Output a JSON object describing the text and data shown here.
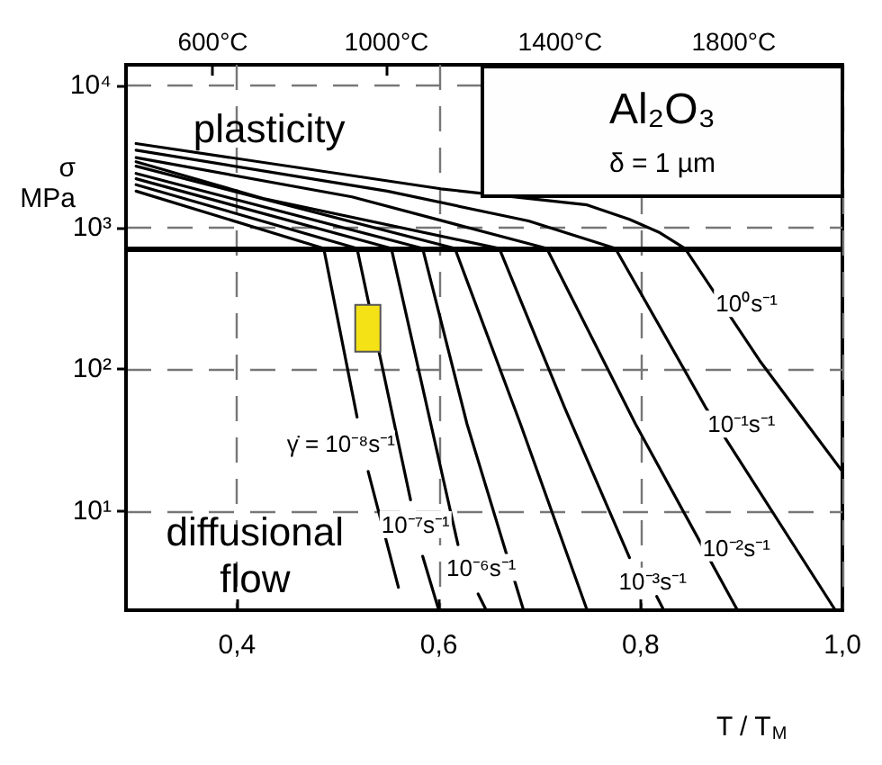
{
  "chart_data": {
    "type": "line",
    "xlabel": "T / T$_{M}$",
    "ylabel": "σ\nMPa",
    "xlim": [
      0.29,
      1.0
    ],
    "xticks": [
      {
        "value": 0.4,
        "label": "0,4"
      },
      {
        "value": 0.6,
        "label": "0,6"
      },
      {
        "value": 0.8,
        "label": "0,8"
      },
      {
        "value": 1.0,
        "label": "1,0"
      }
    ],
    "x2lim": [
      400,
      2050
    ],
    "x2ticks": [
      {
        "value": 600,
        "label": "600°C"
      },
      {
        "value": 1000,
        "label": "1000°C"
      },
      {
        "value": 1400,
        "label": "1400°C"
      },
      {
        "value": 1800,
        "label": "1800°C"
      }
    ],
    "ylim": [
      2,
      14000
    ],
    "log": "y",
    "yticks": [
      {
        "value": 10,
        "label": "10¹"
      },
      {
        "value": 100,
        "label": "10²"
      },
      {
        "value": 1000,
        "label": "10³"
      },
      {
        "value": 10000,
        "label": "10⁴"
      }
    ],
    "grid": true,
    "marker": "none",
    "line_style": "solid",
    "ref_lines": [
      {
        "axis": "y",
        "value": 710,
        "color": "#000000"
      }
    ],
    "series": [
      {
        "color": "#000000",
        "x": [
          0.3,
          0.486,
          0.519,
          0.525,
          0.53,
          0.56
        ],
        "values": [
          1800,
          710,
          46,
          null,
          19,
          2.9
        ]
      },
      {
        "color": "#000000",
        "x": [
          0.3,
          0.519,
          0.572,
          0.578,
          0.584,
          0.6
        ],
        "values": [
          2000,
          710,
          12,
          null,
          4.8,
          2.0
        ]
      },
      {
        "color": "#000000",
        "x": [
          0.3,
          0.553,
          0.619,
          0.63,
          0.639,
          0.647
        ],
        "values": [
          2200,
          710,
          5.8,
          null,
          2.6,
          2.0
        ]
      },
      {
        "color": "#000000",
        "x": [
          0.3,
          0.584,
          0.628,
          0.684
        ],
        "values": [
          2400,
          710,
          41,
          2.0
        ]
      },
      {
        "color": "#000000",
        "x": [
          0.3,
          0.616,
          0.681,
          0.747
        ],
        "values": [
          2700,
          710,
          41,
          2.0
        ]
      },
      {
        "color": "#000000",
        "x": [
          0.3,
          0.426,
          0.66,
          0.725,
          0.789,
          0.8,
          0.816,
          0.823
        ],
        "values": [
          2900,
          1600,
          710,
          53,
          4.7,
          null,
          2.5,
          2.0
        ]
      },
      {
        "color": "#000000",
        "x": [
          0.3,
          0.514,
          0.707,
          0.795,
          0.896
        ],
        "values": [
          3100,
          1640,
          710,
          41,
          2.0
        ]
      },
      {
        "color": "#000000",
        "x": [
          0.3,
          0.549,
          0.689,
          0.775,
          0.865,
          0.993
        ],
        "values": [
          3500,
          1800,
          1110,
          710,
          53,
          2.0
        ]
      },
      {
        "color": "#000000",
        "x": [
          0.3,
          0.602,
          0.747,
          0.789,
          0.818,
          0.844,
          0.918,
          1.0
        ],
        "values": [
          3900,
          1870,
          1440,
          1140,
          925,
          710,
          115,
          19
        ]
      }
    ],
    "annotations": [
      {
        "text": "10⁻⁷s⁻¹",
        "x": 0.577,
        "y": 8
      },
      {
        "text": "10⁻⁶s⁻¹",
        "x": 0.642,
        "y": 4
      },
      {
        "text": "10⁻³s⁻¹",
        "x": 0.812,
        "y": 3.2
      },
      {
        "text": "10⁻²s⁻¹",
        "x": 0.895,
        "y": 5.5
      },
      {
        "text": "10⁻¹s⁻¹",
        "x": 0.9,
        "y": 41
      },
      {
        "text": "10⁰s⁻¹",
        "x": 0.905,
        "y": 290
      },
      "plasticity",
      "diffusional\nflow",
      "γ̇ = 10⁻⁸s⁻¹",
      "Al₂O₃",
      "δ = 1 µm"
    ]
  }
}
